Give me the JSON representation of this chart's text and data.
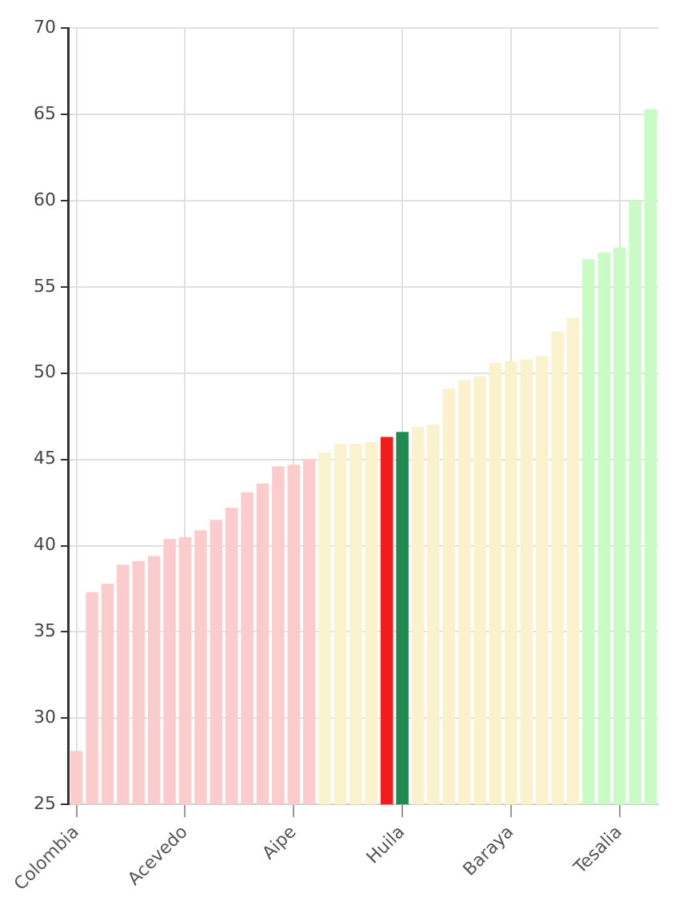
{
  "chart_data": {
    "type": "bar",
    "categories": [
      "Colombia",
      null,
      null,
      null,
      null,
      null,
      null,
      "Acevedo",
      null,
      null,
      null,
      null,
      null,
      null,
      "Aipe",
      null,
      null,
      null,
      null,
      null,
      null,
      "Huila",
      null,
      null,
      null,
      null,
      null,
      null,
      "Baraya",
      null,
      null,
      null,
      null,
      null,
      null,
      "Tesalia",
      null,
      null
    ],
    "values": [
      28.1,
      37.3,
      37.8,
      38.9,
      39.1,
      39.4,
      40.4,
      40.5,
      40.9,
      41.5,
      42.2,
      43.1,
      43.6,
      44.6,
      44.7,
      45.0,
      45.4,
      45.9,
      45.9,
      46.0,
      46.3,
      46.6,
      46.9,
      47.0,
      49.1,
      49.6,
      49.8,
      50.6,
      50.7,
      50.8,
      51.0,
      52.4,
      53.2,
      56.6,
      57.0,
      57.3,
      60.0,
      65.3
    ],
    "colors": [
      "#fccccc",
      "#fccccc",
      "#fccccc",
      "#fccccc",
      "#fccccc",
      "#fccccc",
      "#fccccc",
      "#fccccc",
      "#fccccc",
      "#fccccc",
      "#fccccc",
      "#fccccc",
      "#fccccc",
      "#fccccc",
      "#fccccc",
      "#fccccc",
      "#faf2cc",
      "#faf2cc",
      "#faf2cc",
      "#faf2cc",
      "#f21c1c",
      "#218a53",
      "#faf2cc",
      "#faf2cc",
      "#faf2cc",
      "#faf2cc",
      "#faf2cc",
      "#faf2cc",
      "#faf2cc",
      "#faf2cc",
      "#faf2cc",
      "#faf2cc",
      "#faf2cc",
      "#c8fcc4",
      "#c8fcc4",
      "#c8fcc4",
      "#c8fcc4",
      "#c8fcc4"
    ],
    "ylim": [
      25,
      70
    ],
    "yticks": [
      25,
      30,
      35,
      40,
      45,
      50,
      55,
      60,
      65,
      70
    ],
    "grid": true
  }
}
